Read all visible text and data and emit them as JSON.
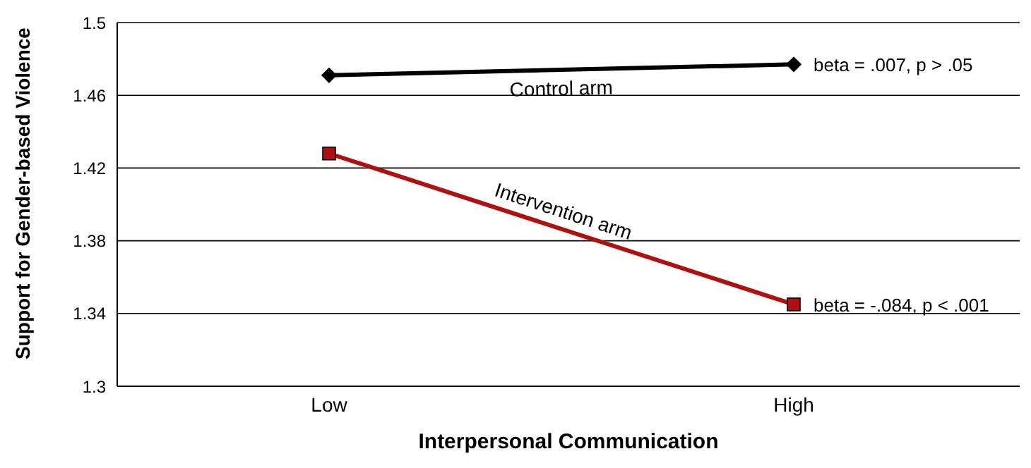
{
  "chart_data": {
    "type": "line",
    "xlabel": "Interpersonal Communication",
    "ylabel": "Support for Gender-based Violence",
    "categories": [
      "Low",
      "High"
    ],
    "series": [
      {
        "name": "Control arm",
        "color": "#000000",
        "marker": "diamond",
        "values": [
          1.471,
          1.477
        ]
      },
      {
        "name": "Intervention arm",
        "color": "#b01010",
        "marker": "square",
        "values": [
          1.428,
          1.345
        ]
      }
    ],
    "ylim": [
      1.3,
      1.5
    ],
    "yticks": [
      1.3,
      1.34,
      1.38,
      1.42,
      1.46,
      1.5
    ],
    "grid": "y",
    "annotations": [
      {
        "text": "beta = .007, p > .05",
        "x": "High",
        "y": 1.477
      },
      {
        "text": "beta = -.084,  p < .001",
        "x": "High",
        "y": 1.345
      }
    ]
  }
}
